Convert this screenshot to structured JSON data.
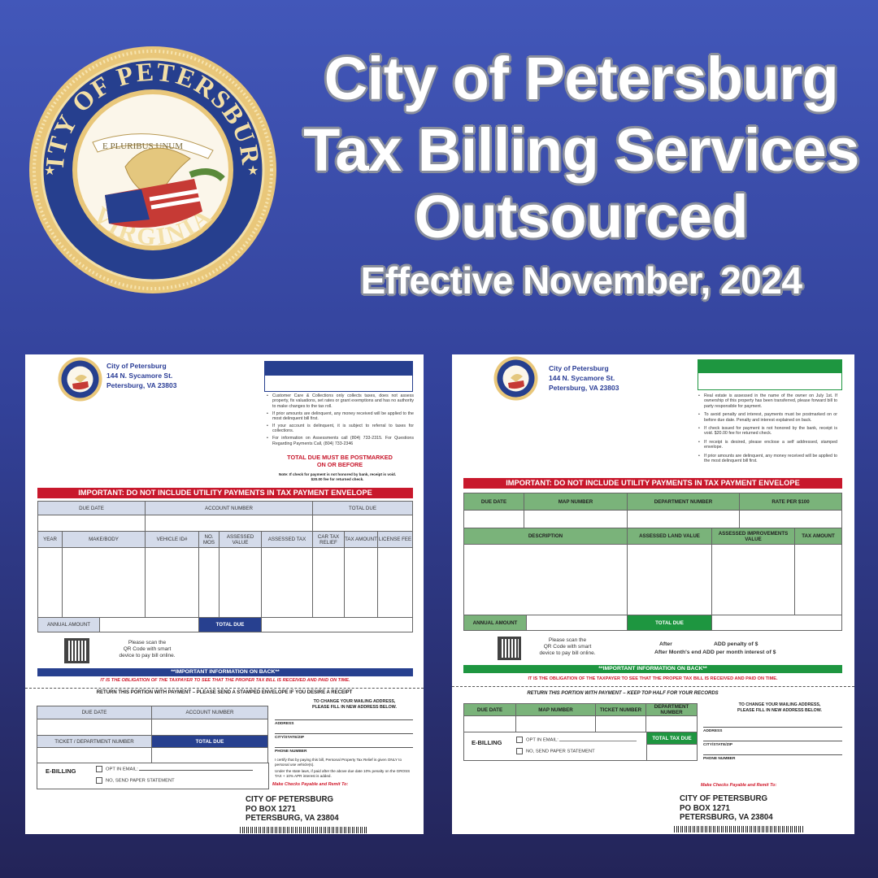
{
  "seal": {
    "top_text": "CITY OF PETERSBURG",
    "motto": "E PLURIBUS UNUM",
    "bottom_text": "VIRGINIA",
    "colors": {
      "gold": "#e9c77a",
      "blue": "#263f8e"
    }
  },
  "headline": {
    "line1": "City of Petersburg",
    "line2": "Tax Billing Services",
    "line3": "Outsourced",
    "line4": "Effective November, 2024"
  },
  "colors": {
    "background_top": "#4257b9",
    "background_bottom": "#232458",
    "form_blue": "#27408f",
    "form_red": "#c8182c",
    "form_green": "#1e9640"
  },
  "common": {
    "city": "City of Petersburg",
    "street": "144 N. Sycamore St.",
    "citystate": "Petersburg, VA 23803",
    "banner": "IMPORTANT: DO NOT INCLUDE UTILITY PAYMENTS IN TAX PAYMENT ENVELOPE",
    "qr_text": [
      "Please scan the",
      "QR Code with smart",
      "device to pay bill online."
    ],
    "info_back": "**IMPORTANT INFORMATION ON BACK**",
    "obligation": "IT IS THE OBLIGATION OF THE TAXPAYER TO SEE THAT THE PROPER TAX BILL IS RECEIVED AND PAID ON TIME.",
    "change_address": [
      "TO CHANGE YOUR MAILING ADDRESS,",
      "PLEASE FILL IN NEW ADDRESS BELOW."
    ],
    "address_lines": [
      "ADDRESS",
      "CITY/STATE/ZIP",
      "PHONE NUMBER"
    ],
    "ebilling": "E-BILLING",
    "opt_in": "OPT IN EMAIL:",
    "paper": "NO, SEND PAPER STATEMENT",
    "remit_label": "Make Checks Payable and Remit To:",
    "remit": [
      "CITY OF PETERSBURG",
      "PO BOX 1271",
      "PETERSBURG, VA 23804"
    ]
  },
  "personal_property_bill": {
    "bullets": [
      "Customer Care & Collections only collects taxes, does not assess property, fix valuations, set rates or grant exemptions and has no authority to make changes to the tax roll.",
      "If prior amounts are delinquent, any money received will be applied to the most delinquent bill first.",
      "If your account is delinquent, it is subject to referral to taxes for collections.",
      "For information on Assessments call (804) 733-2315. For Questions Regarding Payments Call, (804) 733-2346"
    ],
    "postmark": [
      "TOTAL DUE MUST BE POSTMARKED",
      "ON OR BEFORE"
    ],
    "note": [
      "Note: If check for payment is not honored by bank, receipt is void.",
      "$20.00 fee for returned check."
    ],
    "header1": [
      "DUE DATE",
      "ACCOUNT NUMBER",
      "TOTAL DUE"
    ],
    "header2": [
      "YEAR",
      "MAKE/BODY",
      "VEHICLE ID#",
      "NO. MOS",
      "ASSESSED VALUE",
      "ASSESSED TAX",
      "CAR TAX RELIEF",
      "TAX AMOUNT",
      "LICENSE FEE"
    ],
    "annual": "ANNUAL AMOUNT",
    "total_due": "TOTAL DUE",
    "return": "RETURN THIS PORTION WITH PAYMENT – PLEASE SEND A STAMPED ENVELOPE IF YOU DESIRE A RECEIPT",
    "stub_h1": [
      "DUE DATE",
      "ACCOUNT NUMBER"
    ],
    "stub_h2": [
      "TICKET / DEPARTMENT NUMBER",
      "TOTAL DUE"
    ],
    "certify": "I certify that by paying this bill, Personal Property Tax Relief is given ONLY to personal use vehicle(s).",
    "penalty": "Under the state laws, if paid after the above due date 10% penalty on the GROSS TAX + 10% APR interest is added."
  },
  "real_estate_bill": {
    "bullets": [
      "Real estate is assessed in the name of the owner on July 1st. If ownership of this property has been transferred, please forward bill to party responsible for payment.",
      "To avoid penalty and interest, payments must be postmarked on or before due date. Penalty and interest explained on back.",
      "If check issued for payment is not honored by the bank, receipt is void. $20.00 fee for returned check.",
      "If receipt is desired, please enclose a self addressed, stamped envelope.",
      "If prior amounts are delinquent, any money received will be applied to the most delinquent bill first."
    ],
    "header1": [
      "DUE DATE",
      "MAP NUMBER",
      "DEPARTMENT NUMBER",
      "RATE PER $100"
    ],
    "header2": [
      "DESCRIPTION",
      "ASSESSED LAND VALUE",
      "ASSESSED IMPROVEMENTS VALUE",
      "TAX AMOUNT"
    ],
    "annual": "ANNUAL AMOUNT",
    "total_due": "TOTAL DUE",
    "after1": "After",
    "after1b": "ADD penalty of $",
    "after2": "After Month's end ADD per month interest of $",
    "return": "RETURN THIS PORTION WITH PAYMENT – KEEP TOP HALF FOR YOUR RECORDS",
    "stub_h1": [
      "DUE DATE",
      "MAP NUMBER",
      "TICKET NUMBER",
      "DEPARTMENT NUMBER"
    ],
    "total_tax_due": "TOTAL TAX DUE"
  }
}
